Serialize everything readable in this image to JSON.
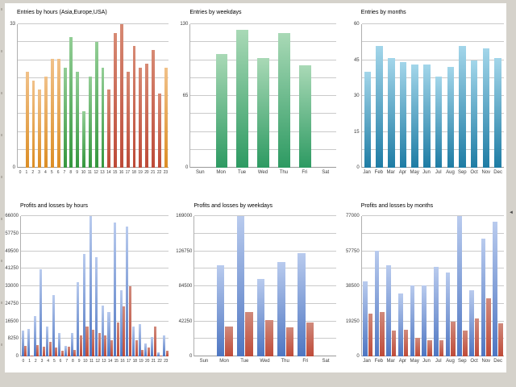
{
  "window": {
    "frame_background": "#d5d2cb",
    "content_background": "#ffffff"
  },
  "icons": {
    "splitter_arrow": "◄"
  },
  "colors": {
    "asia": [
      "#f1c189",
      "#dc8e25"
    ],
    "europe": [
      "#93ce96",
      "#35973e"
    ],
    "usa": [
      "#d78a74",
      "#bd4a38"
    ],
    "entries_weekday": [
      "#a9d9b6",
      "#2d9a62"
    ],
    "entries_month": [
      "#a3d6ea",
      "#1e7ca4"
    ],
    "profit": [
      "#b9cbee",
      "#4e76c2"
    ],
    "loss": [
      "#d08a7c",
      "#bf4a38"
    ],
    "grid": "#cacaca",
    "axis": "#999999"
  },
  "chart_data": [
    {
      "id": "entries-by-hours",
      "type": "bar",
      "title": "Entries by hours (Asia,Europe,USA)",
      "categories": [
        "0",
        "1",
        "2",
        "3",
        "4",
        "5",
        "6",
        "7",
        "8",
        "9",
        "10",
        "11",
        "12",
        "13",
        "14",
        "15",
        "16",
        "17",
        "18",
        "19",
        "20",
        "21",
        "22",
        "23"
      ],
      "values": [
        0,
        22,
        20,
        18,
        21,
        25,
        25,
        23,
        30,
        22,
        13,
        21,
        29,
        23,
        18,
        31,
        33,
        22,
        28,
        23,
        24,
        27,
        17,
        23
      ],
      "groups": [
        "asia",
        "asia",
        "asia",
        "asia",
        "asia",
        "asia",
        "asia",
        "europe",
        "europe",
        "europe",
        "europe",
        "europe",
        "europe",
        "europe",
        "usa",
        "usa",
        "usa",
        "usa",
        "usa",
        "usa",
        "usa",
        "usa",
        "usa",
        "asia"
      ],
      "ylim": [
        0,
        33
      ],
      "grid_intervals": 8,
      "yticks": [
        {
          "v": 33,
          "label": "33"
        },
        {
          "v": 0,
          "label": "0"
        }
      ],
      "legend_position": "none"
    },
    {
      "id": "entries-by-weekdays",
      "type": "bar",
      "title": "Entries by weekdays",
      "categories": [
        "Sun",
        "Mon",
        "Tue",
        "Wed",
        "Thu",
        "Fri",
        "Sat"
      ],
      "values": [
        0,
        103,
        125,
        99,
        122,
        93,
        0
      ],
      "color_key": "entries_weekday",
      "ylim": [
        0,
        130
      ],
      "grid_intervals": 8,
      "yticks": [
        {
          "v": 130,
          "label": "130"
        },
        {
          "v": 65,
          "label": "65"
        },
        {
          "v": 0,
          "label": "0"
        }
      ],
      "legend_position": "none"
    },
    {
      "id": "entries-by-months",
      "type": "bar",
      "title": "Entries by months",
      "categories": [
        "Jan",
        "Feb",
        "Mar",
        "Apr",
        "May",
        "Jun",
        "Jul",
        "Aug",
        "Sep",
        "Oct",
        "Nov",
        "Dec"
      ],
      "values": [
        40,
        51,
        46,
        44,
        43,
        43,
        38,
        42,
        51,
        45,
        50,
        46
      ],
      "color_key": "entries_month",
      "ylim": [
        0,
        60
      ],
      "grid_intervals": 8,
      "yticks": [
        {
          "v": 60,
          "label": "60"
        },
        {
          "v": 45,
          "label": "45"
        },
        {
          "v": 30,
          "label": "30"
        },
        {
          "v": 15,
          "label": "15"
        },
        {
          "v": 0,
          "label": "0"
        }
      ],
      "legend_position": "none"
    },
    {
      "id": "profits-losses-by-hours",
      "type": "grouped_bar",
      "title": "Profits and losses by hours",
      "categories": [
        "0",
        "1",
        "2",
        "3",
        "4",
        "5",
        "6",
        "7",
        "8",
        "9",
        "10",
        "11",
        "12",
        "13",
        "14",
        "15",
        "16",
        "17",
        "18",
        "19",
        "20",
        "21",
        "22",
        "23"
      ],
      "series": [
        {
          "name": "profits",
          "color_key": "profit",
          "values": [
            12000,
            13000,
            19000,
            41000,
            14000,
            29000,
            11000,
            5000,
            11000,
            35000,
            48000,
            66000,
            46500,
            24000,
            21000,
            63000,
            31000,
            61000,
            14000,
            15000,
            6000,
            9000,
            2000,
            10000
          ]
        },
        {
          "name": "losses",
          "color_key": "loss",
          "values": [
            5000,
            500,
            5500,
            4500,
            7000,
            4000,
            2500,
            4500,
            3000,
            10000,
            14000,
            12500,
            11000,
            10000,
            7500,
            16000,
            23500,
            33000,
            7500,
            3000,
            4000,
            14000,
            300,
            2500
          ]
        }
      ],
      "ylim": [
        0,
        66000
      ],
      "grid_intervals": 8,
      "yticks": [
        {
          "v": 66000,
          "label": "66000"
        },
        {
          "v": 57750,
          "label": "57750"
        },
        {
          "v": 49500,
          "label": "49500"
        },
        {
          "v": 41250,
          "label": "41250"
        },
        {
          "v": 33000,
          "label": "33000"
        },
        {
          "v": 24750,
          "label": "24750"
        },
        {
          "v": 16500,
          "label": "16500"
        },
        {
          "v": 8250,
          "label": "8250"
        },
        {
          "v": 0,
          "label": "0"
        }
      ],
      "legend_position": "none"
    },
    {
      "id": "profits-losses-by-weekdays",
      "type": "grouped_bar",
      "title": "Profits and losses by weekdays",
      "categories": [
        "Sun",
        "Mon",
        "Tue",
        "Wed",
        "Thu",
        "Fri",
        "Sat"
      ],
      "series": [
        {
          "name": "profits",
          "color_key": "profit",
          "values": [
            0,
            110000,
            169000,
            93000,
            114000,
            124000,
            0
          ]
        },
        {
          "name": "losses",
          "color_key": "loss",
          "values": [
            0,
            36000,
            53000,
            44000,
            35000,
            41000,
            0
          ]
        }
      ],
      "ylim": [
        0,
        169000
      ],
      "grid_intervals": 8,
      "yticks": [
        {
          "v": 169000,
          "label": "169000"
        },
        {
          "v": 126750,
          "label": "126750"
        },
        {
          "v": 84500,
          "label": "84500"
        },
        {
          "v": 42250,
          "label": "42250"
        },
        {
          "v": 0,
          "label": "0"
        }
      ],
      "legend_position": "none"
    },
    {
      "id": "profits-losses-by-months",
      "type": "grouped_bar",
      "title": "Profits and losses by months",
      "categories": [
        "Jan",
        "Feb",
        "Mar",
        "Apr",
        "May",
        "Jun",
        "Jul",
        "Aug",
        "Sep",
        "Oct",
        "Nov",
        "Dec"
      ],
      "series": [
        {
          "name": "profits",
          "color_key": "profit",
          "values": [
            41000,
            58000,
            50000,
            34500,
            39000,
            39000,
            49000,
            46000,
            77000,
            36500,
            64500,
            74000
          ]
        },
        {
          "name": "losses",
          "color_key": "loss",
          "values": [
            23500,
            24500,
            14000,
            14500,
            10000,
            9000,
            9000,
            19000,
            14000,
            21000,
            32000,
            18000
          ]
        }
      ],
      "ylim": [
        0,
        77000
      ],
      "grid_intervals": 8,
      "yticks": [
        {
          "v": 77000,
          "label": "77000"
        },
        {
          "v": 57750,
          "label": "57750"
        },
        {
          "v": 38500,
          "label": "38500"
        },
        {
          "v": 19250,
          "label": "19250"
        },
        {
          "v": 0,
          "label": "0"
        }
      ],
      "legend_position": "none"
    }
  ]
}
